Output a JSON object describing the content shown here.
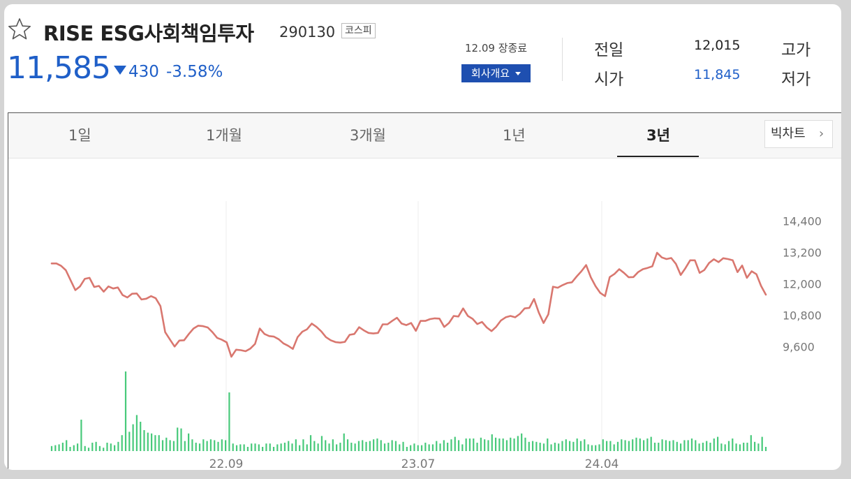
{
  "header": {
    "favorite_icon": "star-outline-icon",
    "name": "RISE ESG사회책임투자",
    "code": "290130",
    "market": "코스피",
    "price": "11,585",
    "change_direction": "down",
    "change_amount": "430",
    "change_percent": "-3.58%",
    "status": "12.09 장종료",
    "company_button": "회사개요",
    "quotes": [
      {
        "label": "전일",
        "value": "12,015",
        "color": "#222222"
      },
      {
        "label": "시가",
        "value": "11,845",
        "color": "#1f5fc8"
      }
    ],
    "extra_labels": [
      "고가",
      "저가"
    ]
  },
  "tabs": {
    "items": [
      "1일",
      "1개월",
      "3개월",
      "1년",
      "3년"
    ],
    "active": "3년",
    "bigchart_label": "빅차트",
    "bigchart_icon": "chevron-right-icon"
  },
  "colors": {
    "price_line": "#d9776f",
    "volume_bar": "#47c97a",
    "price_down": "#1f5fc8",
    "grid": "#ececec",
    "axis_text": "#777777"
  },
  "chart_data": [
    {
      "type": "line",
      "title": "",
      "x_ticks": [
        "22.09",
        "23.07",
        "24.04"
      ],
      "y_ticks": [
        14400,
        13200,
        12000,
        10800,
        9600
      ],
      "ylim": [
        9100,
        14900
      ],
      "grid": "vertical",
      "series": [
        {
          "values": [
            12780,
            12780,
            12690,
            12520,
            12140,
            11760,
            11900,
            12190,
            12230,
            11880,
            11920,
            11700,
            11900,
            11820,
            11860,
            11570,
            11480,
            11620,
            11630,
            11400,
            11430,
            11530,
            11450,
            11150,
            10150,
            9870,
            9600,
            9830,
            9840,
            10080,
            10290,
            10400,
            10380,
            10330,
            10150,
            9930,
            9860,
            9760,
            9210,
            9480,
            9460,
            9420,
            9520,
            9700,
            10290,
            10080,
            10000,
            9980,
            9880,
            9720,
            9630,
            9510,
            9960,
            10170,
            10260,
            10480,
            10350,
            10180,
            9960,
            9840,
            9770,
            9750,
            9780,
            10050,
            10080,
            10340,
            10220,
            10120,
            10100,
            10120,
            10450,
            10450,
            10580,
            10700,
            10480,
            10420,
            10500,
            10200,
            10580,
            10580,
            10650,
            10680,
            10670,
            10350,
            10500,
            10770,
            10750,
            11060,
            10770,
            10660,
            10460,
            10540,
            10330,
            10190,
            10360,
            10600,
            10720,
            10770,
            10720,
            10850,
            11060,
            11080,
            11420,
            10900,
            10500,
            10830,
            11890,
            11850,
            11950,
            12030,
            12060,
            12280,
            12480,
            12720,
            12250,
            11910,
            11650,
            11530,
            12260,
            12380,
            12560,
            12420,
            12250,
            12260,
            12450,
            12560,
            12610,
            12670,
            13190,
            13010,
            12950,
            12990,
            12760,
            12340,
            12600,
            12900,
            12900,
            12420,
            12530,
            12800,
            12940,
            12830,
            12980,
            12950,
            12900,
            12450,
            12700,
            12230,
            12480,
            12370,
            11920,
            11585
          ]
        }
      ]
    },
    {
      "type": "bar",
      "title": "",
      "series": [
        {
          "values": [
            12,
            14,
            16,
            20,
            26,
            10,
            14,
            18,
            75,
            12,
            8,
            20,
            22,
            12,
            8,
            20,
            18,
            14,
            22,
            38,
            190,
            46,
            64,
            86,
            70,
            50,
            44,
            42,
            38,
            38,
            26,
            32,
            26,
            24,
            56,
            54,
            24,
            42,
            28,
            20,
            18,
            28,
            24,
            28,
            26,
            22,
            28,
            26,
            140,
            18,
            14,
            16,
            16,
            10,
            18,
            18,
            16,
            10,
            18,
            18,
            10,
            16,
            18,
            20,
            24,
            18,
            28,
            14,
            28,
            16,
            38,
            24,
            18,
            36,
            26,
            18,
            28,
            16,
            20,
            42,
            28,
            20,
            18,
            24,
            26,
            22,
            24,
            28,
            30,
            26,
            18,
            20,
            26,
            24,
            16,
            22,
            10,
            14,
            18,
            14,
            14,
            20,
            16,
            16,
            24,
            18,
            26,
            20,
            28,
            34,
            26,
            16,
            30,
            30,
            30,
            20,
            32,
            28,
            26,
            40,
            32,
            30,
            30,
            26,
            32,
            30,
            36,
            42,
            32,
            22,
            24,
            22,
            20,
            18,
            30,
            16,
            20,
            18,
            24,
            28,
            24,
            22,
            30,
            24,
            28,
            16,
            14,
            14,
            16,
            28,
            24,
            24,
            16,
            22,
            28,
            26,
            24,
            28,
            32,
            30,
            26,
            30,
            34,
            20,
            20,
            28,
            26,
            24,
            26,
            22,
            18,
            26,
            26,
            30,
            26,
            18,
            20,
            24,
            20,
            30,
            34,
            18,
            16,
            24,
            30,
            18,
            16,
            20,
            20,
            38,
            22,
            18,
            34,
            10
          ]
        }
      ]
    }
  ]
}
